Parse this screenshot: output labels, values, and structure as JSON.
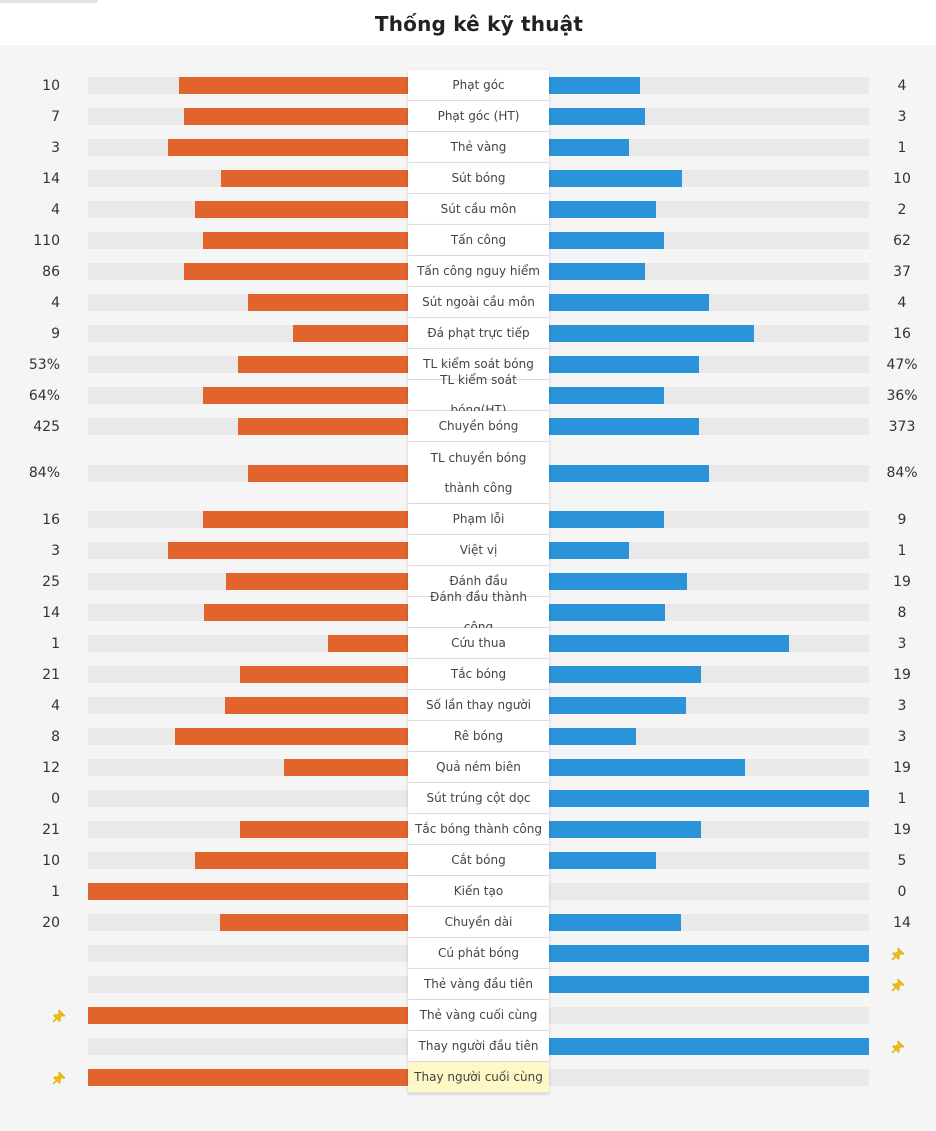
{
  "title": "Thống kê kỹ thuật",
  "colors": {
    "home": "#e2642d",
    "away": "#2a93d9",
    "track": "#e9e9e9",
    "pin": "#f2b90f",
    "highlight": "#fdf8c6"
  },
  "rows": [
    {
      "label": "Phạt góc",
      "left": "10",
      "right": "4",
      "lv": 10,
      "rv": 4
    },
    {
      "label": "Phạt góc (HT)",
      "left": "7",
      "right": "3",
      "lv": 7,
      "rv": 3
    },
    {
      "label": "Thẻ vàng",
      "left": "3",
      "right": "1",
      "lv": 3,
      "rv": 1
    },
    {
      "label": "Sút bóng",
      "left": "14",
      "right": "10",
      "lv": 14,
      "rv": 10
    },
    {
      "label": "Sút cầu môn",
      "left": "4",
      "right": "2",
      "lv": 4,
      "rv": 2
    },
    {
      "label": "Tấn công",
      "left": "110",
      "right": "62",
      "lv": 110,
      "rv": 62
    },
    {
      "label": "Tấn công nguy hiểm",
      "left": "86",
      "right": "37",
      "lv": 86,
      "rv": 37
    },
    {
      "label": "Sút ngoài cầu môn",
      "left": "4",
      "right": "4",
      "lv": 4,
      "rv": 4
    },
    {
      "label": "Đá phạt trực tiếp",
      "left": "9",
      "right": "16",
      "lv": 9,
      "rv": 16
    },
    {
      "label": "TL kiểm soát bóng",
      "left": "53%",
      "right": "47%",
      "lv": 53,
      "rv": 47
    },
    {
      "label": "TL kiểm soát bóng(HT)",
      "left": "64%",
      "right": "36%",
      "lv": 64,
      "rv": 36
    },
    {
      "label": "Chuyền bóng",
      "left": "425",
      "right": "373",
      "lv": 425,
      "rv": 373
    },
    {
      "label": "TL chuyền bóng thành công",
      "left": "84%",
      "right": "84%",
      "lv": 84,
      "rv": 84,
      "tall": true
    },
    {
      "label": "Phạm lỗi",
      "left": "16",
      "right": "9",
      "lv": 16,
      "rv": 9
    },
    {
      "label": "Việt vị",
      "left": "3",
      "right": "1",
      "lv": 3,
      "rv": 1
    },
    {
      "label": "Đánh đầu",
      "left": "25",
      "right": "19",
      "lv": 25,
      "rv": 19
    },
    {
      "label": "Đánh đầu thành công",
      "left": "14",
      "right": "8",
      "lv": 14,
      "rv": 8
    },
    {
      "label": "Cứu thua",
      "left": "1",
      "right": "3",
      "lv": 1,
      "rv": 3
    },
    {
      "label": "Tắc bóng",
      "left": "21",
      "right": "19",
      "lv": 21,
      "rv": 19
    },
    {
      "label": "Số lần thay người",
      "left": "4",
      "right": "3",
      "lv": 4,
      "rv": 3
    },
    {
      "label": "Rê bóng",
      "left": "8",
      "right": "3",
      "lv": 8,
      "rv": 3
    },
    {
      "label": "Quả ném biên",
      "left": "12",
      "right": "19",
      "lv": 12,
      "rv": 19
    },
    {
      "label": "Sút trúng cột dọc",
      "left": "0",
      "right": "1",
      "lv": 0,
      "rv": 1
    },
    {
      "label": "Tắc bóng thành công",
      "left": "21",
      "right": "19",
      "lv": 21,
      "rv": 19
    },
    {
      "label": "Cắt bóng",
      "left": "10",
      "right": "5",
      "lv": 10,
      "rv": 5
    },
    {
      "label": "Kiến tạo",
      "left": "1",
      "right": "0",
      "lv": 1,
      "rv": 0
    },
    {
      "label": "Chuyền dài",
      "left": "20",
      "right": "14",
      "lv": 20,
      "rv": 14
    },
    {
      "label": "Cú phát bóng",
      "left": "",
      "right": "",
      "lv": 0,
      "rv": 1,
      "pin": "right"
    },
    {
      "label": "Thẻ vàng đầu tiên",
      "left": "",
      "right": "",
      "lv": 0,
      "rv": 1,
      "pin": "right"
    },
    {
      "label": "Thẻ vàng cuối cùng",
      "left": "",
      "right": "",
      "lv": 1,
      "rv": 0,
      "pin": "left"
    },
    {
      "label": "Thay người đầu tiên",
      "left": "",
      "right": "",
      "lv": 0,
      "rv": 1,
      "pin": "right"
    },
    {
      "label": "Thay người cuối cùng",
      "left": "",
      "right": "",
      "lv": 1,
      "rv": 0,
      "pin": "left",
      "highlight": true
    }
  ]
}
